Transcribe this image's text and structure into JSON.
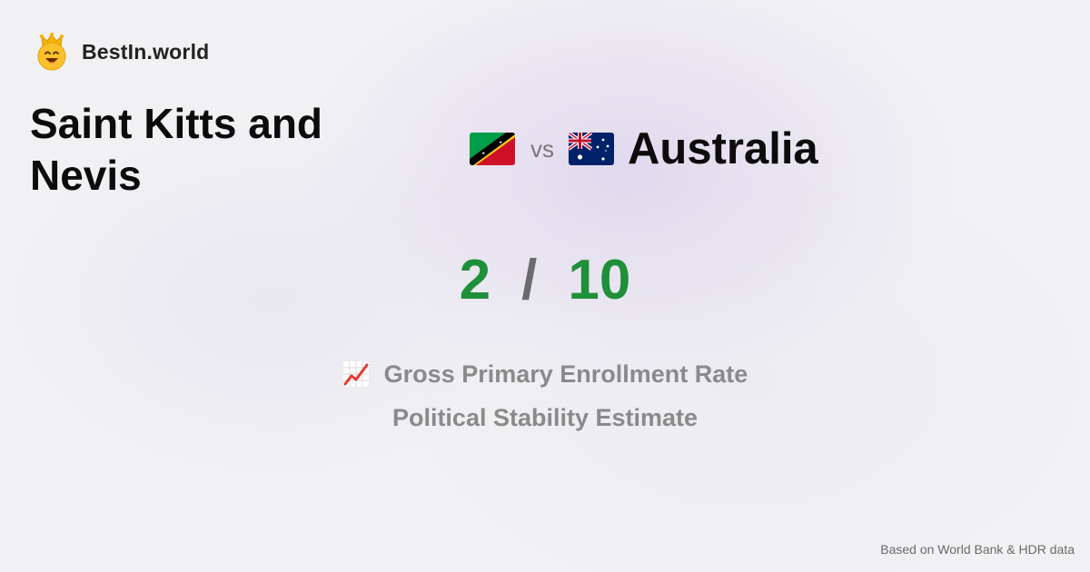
{
  "brand": {
    "name": "BestIn.world",
    "icon": "crown-smiley-icon"
  },
  "comparison": {
    "left_country": "Saint Kitts and Nevis",
    "left_flag": "saint-kitts-and-nevis-flag-icon",
    "vs_label": "vs",
    "right_country": "Australia",
    "right_flag": "australia-flag-icon"
  },
  "score": {
    "left": "2",
    "separator": "/",
    "right": "10",
    "color": "#1f8f3a"
  },
  "metrics": [
    {
      "icon": "chart-increasing-icon",
      "label": "Gross Primary Enrollment Rate"
    },
    {
      "label": "Political Stability Estimate"
    }
  ],
  "footer": {
    "source": "Based on World Bank & HDR data"
  }
}
